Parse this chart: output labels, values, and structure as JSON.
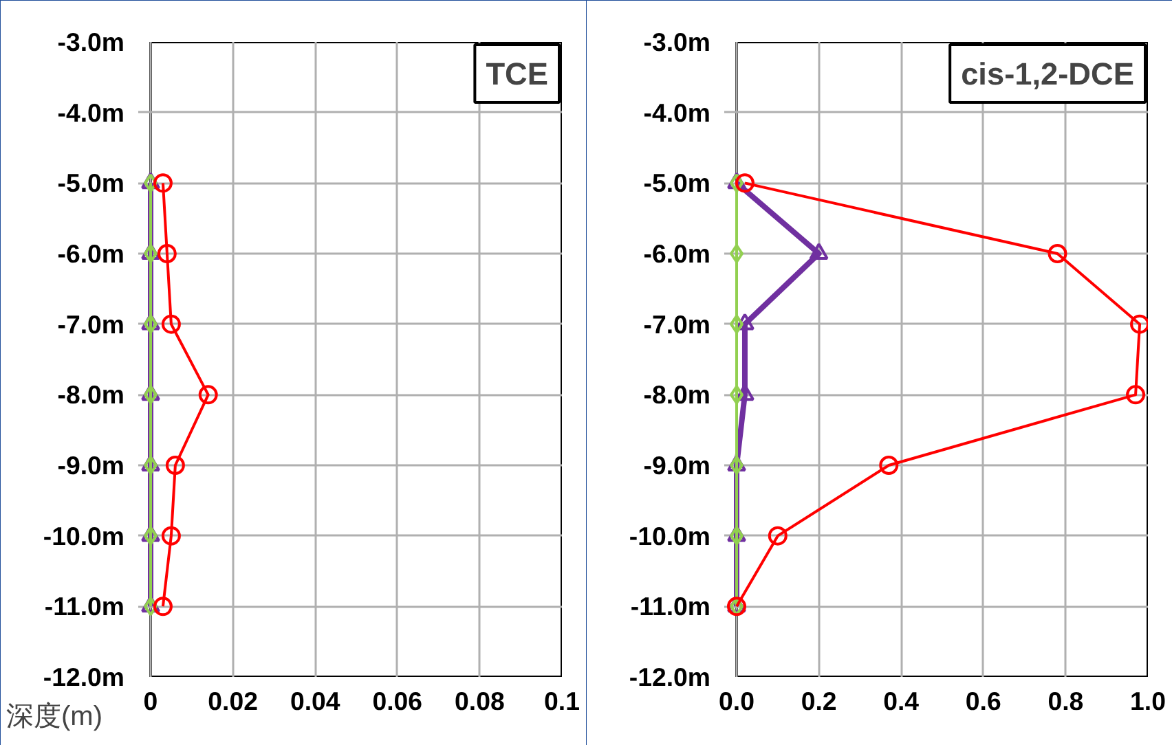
{
  "chart_data": [
    {
      "type": "line",
      "title": "TCE",
      "ylabel": "深度(m)",
      "xlim": [
        0,
        0.1
      ],
      "xticks": [
        0,
        0.02,
        0.04,
        0.06,
        0.08,
        0.1
      ],
      "ylim": [
        -12,
        -3
      ],
      "yticks": [
        {
          "value": -3,
          "label": "-3.0m"
        },
        {
          "value": -4,
          "label": "-4.0m"
        },
        {
          "value": -5,
          "label": "-5.0m"
        },
        {
          "value": -6,
          "label": "-6.0m"
        },
        {
          "value": -7,
          "label": "-7.0m"
        },
        {
          "value": -8,
          "label": "-8.0m"
        },
        {
          "value": -9,
          "label": "-9.0m"
        },
        {
          "value": -10,
          "label": "-10.0m"
        },
        {
          "value": -11,
          "label": "-11.0m"
        },
        {
          "value": -12,
          "label": "-12.0m"
        }
      ],
      "grid": true,
      "line_style": "solid",
      "series": [
        {
          "color": "#92d050",
          "marker": "diamond",
          "x": [
            0,
            0,
            0,
            0,
            0,
            0,
            0
          ],
          "values": [
            -5,
            -6,
            -7,
            -8,
            -9,
            -10,
            -11
          ]
        },
        {
          "color": "#7030a0",
          "marker": "triangle",
          "x": [
            0,
            0,
            0,
            0,
            0,
            0,
            0
          ],
          "values": [
            -5,
            -6,
            -7,
            -8,
            -9,
            -10,
            -11
          ]
        },
        {
          "color": "#ff0000",
          "marker": "circle",
          "x": [
            0.003,
            0.004,
            0.005,
            0.014,
            0.006,
            0.005,
            0.003
          ],
          "values": [
            -5,
            -6,
            -7,
            -8,
            -9,
            -10,
            -11
          ]
        }
      ]
    },
    {
      "type": "line",
      "title": "cis-1,2-DCE",
      "xlim": [
        0,
        1
      ],
      "xticks": [
        {
          "value": 0,
          "label": "0.0"
        },
        0.2,
        0.4,
        0.6,
        0.8,
        {
          "value": 1,
          "label": "1.0"
        }
      ],
      "ylim": [
        -12,
        -3
      ],
      "yticks": [
        {
          "value": -3,
          "label": "-3.0m"
        },
        {
          "value": -4,
          "label": "-4.0m"
        },
        {
          "value": -5,
          "label": "-5.0m"
        },
        {
          "value": -6,
          "label": "-6.0m"
        },
        {
          "value": -7,
          "label": "-7.0m"
        },
        {
          "value": -8,
          "label": "-8.0m"
        },
        {
          "value": -9,
          "label": "-9.0m"
        },
        {
          "value": -10,
          "label": "-10.0m"
        },
        {
          "value": -11,
          "label": "-11.0m"
        },
        {
          "value": -12,
          "label": "-12.0m"
        }
      ],
      "grid": true,
      "line_style": "solid",
      "series": [
        {
          "color": "#92d050",
          "marker": "diamond",
          "x": [
            0,
            0,
            0,
            0,
            0,
            0,
            0
          ],
          "values": [
            -5,
            -6,
            -7,
            -8,
            -9,
            -10,
            -11
          ]
        },
        {
          "color": "#7030a0",
          "marker": "triangle",
          "x": [
            0,
            0.2,
            0.02,
            0.02,
            0,
            0,
            0
          ],
          "values": [
            -5,
            -6,
            -7,
            -8,
            -9,
            -10,
            -11
          ]
        },
        {
          "color": "#ff0000",
          "marker": "circle",
          "x": [
            0.02,
            0.78,
            0.98,
            0.97,
            0.37,
            0.1,
            0
          ],
          "values": [
            -5,
            -6,
            -7,
            -8,
            -9,
            -10,
            -11
          ]
        }
      ]
    }
  ]
}
